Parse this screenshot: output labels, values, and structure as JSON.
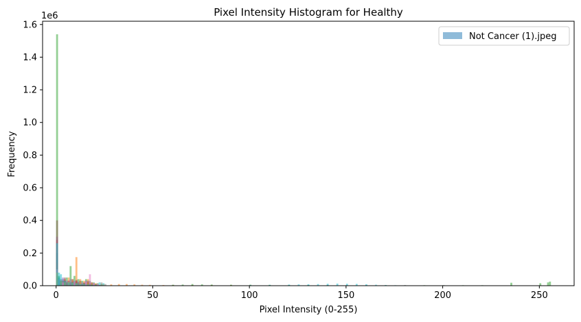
{
  "chart_data": {
    "type": "bar",
    "title": "Pixel Intensity Histogram for Healthy",
    "xlabel": "Pixel Intensity (0-255)",
    "ylabel": "Frequency",
    "y_offset_label": "1e6",
    "xlim": [
      -7,
      268
    ],
    "ylim": [
      0,
      1.62
    ],
    "x_ticks": [
      0,
      50,
      100,
      150,
      200,
      250
    ],
    "y_ticks": [
      0.0,
      0.2,
      0.4,
      0.6,
      0.8,
      1.0,
      1.2,
      1.4,
      1.6
    ],
    "y_tick_labels": [
      "0.0",
      "0.2",
      "0.4",
      "0.6",
      "0.8",
      "1.0",
      "1.2",
      "1.4",
      "1.6"
    ],
    "legend_position": "top-right",
    "legend": [
      "Not Cancer  (1).jpeg"
    ],
    "bin_width": 1,
    "alpha": 0.5,
    "series": [
      {
        "name": "Not Cancer  (1).jpeg",
        "color": "#1f77b4",
        "bins": [
          [
            0,
            0.2
          ],
          [
            1,
            0.05
          ],
          [
            2,
            0.03
          ],
          [
            3,
            0.04
          ],
          [
            4,
            0.03
          ],
          [
            5,
            0.02
          ],
          [
            6,
            0.03
          ],
          [
            7,
            0.02
          ],
          [
            8,
            0.02
          ],
          [
            9,
            0.02
          ],
          [
            10,
            0.02
          ],
          [
            11,
            0.015
          ],
          [
            12,
            0.015
          ],
          [
            13,
            0.01
          ],
          [
            14,
            0.01
          ],
          [
            15,
            0.01
          ],
          [
            16,
            0.008
          ],
          [
            17,
            0.006
          ],
          [
            18,
            0.005
          ],
          [
            19,
            0.004
          ],
          [
            20,
            0.003
          ]
        ]
      },
      {
        "color": "#ff7f0e",
        "bins": [
          [
            0,
            0.14
          ],
          [
            2,
            0.02
          ],
          [
            4,
            0.03
          ],
          [
            6,
            0.05
          ],
          [
            8,
            0.04
          ],
          [
            10,
            0.175
          ],
          [
            12,
            0.04
          ],
          [
            14,
            0.03
          ],
          [
            16,
            0.04
          ],
          [
            18,
            0.02
          ],
          [
            20,
            0.015
          ],
          [
            24,
            0.01
          ],
          [
            28,
            0.008
          ],
          [
            32,
            0.01
          ],
          [
            36,
            0.01
          ],
          [
            40,
            0.008
          ],
          [
            44,
            0.006
          ],
          [
            48,
            0.005
          ],
          [
            55,
            0.004
          ],
          [
            60,
            0.004
          ],
          [
            70,
            0.004
          ],
          [
            80,
            0.004
          ],
          [
            90,
            0.004
          ],
          [
            100,
            0.003
          ],
          [
            110,
            0.003
          ],
          [
            120,
            0.002
          ]
        ]
      },
      {
        "color": "#2ca02c",
        "bins": [
          [
            0,
            1.54
          ],
          [
            1,
            0.06
          ],
          [
            3,
            0.03
          ],
          [
            5,
            0.05
          ],
          [
            7,
            0.12
          ],
          [
            9,
            0.06
          ],
          [
            11,
            0.04
          ],
          [
            13,
            0.03
          ],
          [
            15,
            0.04
          ],
          [
            17,
            0.03
          ],
          [
            19,
            0.02
          ],
          [
            21,
            0.015
          ],
          [
            23,
            0.01
          ],
          [
            60,
            0.006
          ],
          [
            65,
            0.007
          ],
          [
            70,
            0.01
          ],
          [
            75,
            0.008
          ],
          [
            80,
            0.007
          ],
          [
            90,
            0.006
          ],
          [
            100,
            0.006
          ],
          [
            110,
            0.005
          ],
          [
            120,
            0.004
          ],
          [
            130,
            0.004
          ],
          [
            140,
            0.004
          ],
          [
            150,
            0.003
          ],
          [
            160,
            0.003
          ],
          [
            170,
            0.003
          ],
          [
            180,
            0.003
          ],
          [
            190,
            0.003
          ],
          [
            200,
            0.003
          ],
          [
            210,
            0.003
          ],
          [
            220,
            0.003
          ],
          [
            235,
            0.018
          ],
          [
            250,
            0.015
          ],
          [
            254,
            0.02
          ],
          [
            255,
            0.025
          ]
        ]
      },
      {
        "color": "#d62728",
        "bins": [
          [
            0,
            0.28
          ],
          [
            2,
            0.03
          ],
          [
            4,
            0.04
          ],
          [
            6,
            0.03
          ],
          [
            8,
            0.025
          ],
          [
            10,
            0.03
          ],
          [
            12,
            0.02
          ],
          [
            14,
            0.015
          ],
          [
            16,
            0.02
          ],
          [
            18,
            0.01
          ],
          [
            20,
            0.008
          ],
          [
            22,
            0.005
          ]
        ]
      },
      {
        "color": "#9467bd",
        "bins": [
          [
            0,
            0.3
          ],
          [
            1,
            0.04
          ],
          [
            3,
            0.05
          ],
          [
            5,
            0.03
          ],
          [
            7,
            0.04
          ],
          [
            9,
            0.03
          ],
          [
            11,
            0.025
          ],
          [
            13,
            0.02
          ],
          [
            15,
            0.03
          ],
          [
            17,
            0.02
          ],
          [
            19,
            0.015
          ],
          [
            21,
            0.01
          ],
          [
            140,
            0.003
          ],
          [
            160,
            0.003
          ],
          [
            180,
            0.003
          ],
          [
            200,
            0.003
          ]
        ]
      },
      {
        "color": "#8c564b",
        "bins": [
          [
            0,
            0.4
          ],
          [
            2,
            0.04
          ],
          [
            4,
            0.05
          ],
          [
            6,
            0.03
          ],
          [
            8,
            0.04
          ],
          [
            10,
            0.035
          ],
          [
            12,
            0.03
          ],
          [
            14,
            0.02
          ],
          [
            16,
            0.03
          ],
          [
            18,
            0.02
          ],
          [
            20,
            0.01
          ]
        ]
      },
      {
        "color": "#e377c2",
        "bins": [
          [
            0,
            0.1
          ],
          [
            3,
            0.02
          ],
          [
            6,
            0.03
          ],
          [
            9,
            0.02
          ],
          [
            12,
            0.02
          ],
          [
            15,
            0.025
          ],
          [
            17,
            0.07
          ],
          [
            19,
            0.015
          ],
          [
            21,
            0.01
          ]
        ]
      },
      {
        "color": "#7f7f7f",
        "bins": [
          [
            0,
            0.06
          ],
          [
            2,
            0.02
          ],
          [
            5,
            0.02
          ],
          [
            8,
            0.015
          ],
          [
            11,
            0.02
          ],
          [
            14,
            0.015
          ],
          [
            17,
            0.01
          ],
          [
            20,
            0.01
          ],
          [
            23,
            0.02
          ],
          [
            25,
            0.01
          ]
        ]
      },
      {
        "color": "#bcbd22",
        "bins": [
          [
            0,
            0.08
          ],
          [
            2,
            0.03
          ],
          [
            4,
            0.02
          ],
          [
            6,
            0.025
          ],
          [
            8,
            0.02
          ],
          [
            10,
            0.015
          ],
          [
            12,
            0.02
          ],
          [
            14,
            0.01
          ],
          [
            16,
            0.015
          ],
          [
            18,
            0.01
          ],
          [
            20,
            0.008
          ]
        ]
      },
      {
        "color": "#17becf",
        "bins": [
          [
            0,
            0.26
          ],
          [
            1,
            0.08
          ],
          [
            2,
            0.07
          ],
          [
            4,
            0.03
          ],
          [
            6,
            0.02
          ],
          [
            8,
            0.02
          ],
          [
            10,
            0.015
          ],
          [
            12,
            0.01
          ],
          [
            14,
            0.01
          ],
          [
            16,
            0.008
          ],
          [
            18,
            0.006
          ],
          [
            20,
            0.005
          ],
          [
            22,
            0.02
          ],
          [
            24,
            0.015
          ],
          [
            100,
            0.004
          ],
          [
            110,
            0.005
          ],
          [
            120,
            0.007
          ],
          [
            125,
            0.008
          ],
          [
            130,
            0.009
          ],
          [
            135,
            0.01
          ],
          [
            140,
            0.012
          ],
          [
            145,
            0.013
          ],
          [
            150,
            0.012
          ],
          [
            155,
            0.011
          ],
          [
            160,
            0.009
          ],
          [
            165,
            0.006
          ],
          [
            170,
            0.004
          ],
          [
            175,
            0.003
          ]
        ]
      }
    ]
  }
}
